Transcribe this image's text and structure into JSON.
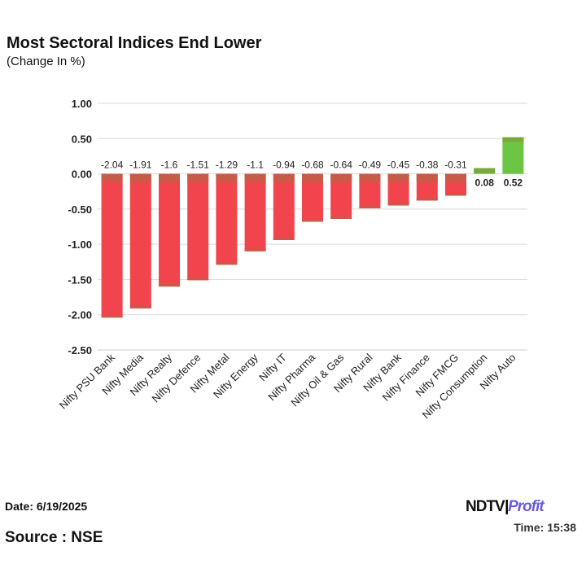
{
  "title": "Most Sectoral Indices End Lower",
  "subtitle": "(Change In %)",
  "footer": {
    "date": "Date: 6/19/2025",
    "source": "Source : NSE",
    "time": "Time: 15:38",
    "logo_left": "NDTV",
    "logo_right": "Profit"
  },
  "colors": {
    "negative": "#f2444c",
    "negative_top": "#c85a48",
    "positive": "#6cc644",
    "positive_top": "#7aa83c",
    "grid": "#d9d9d9"
  },
  "chart_data": {
    "type": "bar",
    "categories": [
      "Nifty PSU Bank",
      "Nifty Media",
      "Nifty Realty",
      "Nifty Defence",
      "Nifty Metal",
      "Nifty Energy",
      "Nifty IT",
      "Nifty Pharma",
      "Nifty Oil & Gas",
      "Nifty Rural",
      "Nifty Bank",
      "Nifty Finance",
      "Nifty FMCG",
      "Nifty Consumption",
      "Nifty Auto"
    ],
    "values": [
      -2.04,
      -1.91,
      -1.6,
      -1.51,
      -1.29,
      -1.1,
      -0.94,
      -0.68,
      -0.64,
      -0.49,
      -0.45,
      -0.38,
      -0.31,
      0.08,
      0.52
    ],
    "data_labels": [
      "-2.04",
      "-1.91",
      "-1.6",
      "-1.51",
      "-1.29",
      "-1.1",
      "-0.94",
      "-0.68",
      "-0.64",
      "-0.49",
      "-0.45",
      "-0.38",
      "-0.31",
      "0.08",
      "0.52"
    ],
    "yticks": [
      "1.00",
      "0.50",
      "0.00",
      "-0.50",
      "-1.00",
      "-1.50",
      "-2.00",
      "-2.50"
    ],
    "ytick_values": [
      1,
      0.5,
      0,
      -0.5,
      -1,
      -1.5,
      -2,
      -2.5
    ],
    "ylim": [
      -2.5,
      1.0
    ],
    "grid": true
  }
}
